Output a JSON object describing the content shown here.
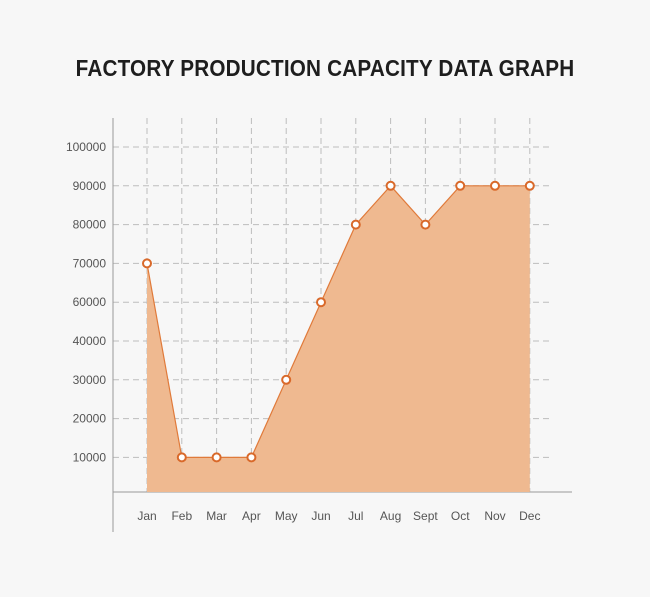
{
  "chart_data": {
    "type": "area",
    "title": "FACTORY PRODUCTION CAPACITY DATA GRAPH",
    "xlabel": "",
    "ylabel": "",
    "categories": [
      "Jan",
      "Feb",
      "Mar",
      "Apr",
      "May",
      "Jun",
      "Jul",
      "Aug",
      "Sept",
      "Oct",
      "Nov",
      "Dec"
    ],
    "series": [
      {
        "values": [
          70000,
          10000,
          10000,
          10000,
          30000,
          60000,
          80000,
          90000,
          80000,
          90000,
          90000,
          90000
        ]
      }
    ],
    "y_tick_labels": [
      "10000",
      "20000",
      "30000",
      "40000",
      "60000",
      "70000",
      "80000",
      "90000",
      "100000"
    ],
    "grid": true,
    "legend": "none",
    "colors": {
      "fill": "#efb990",
      "line": "#e07a3a",
      "marker_stroke": "#d9692a",
      "marker_fill": "#ffffff",
      "grid": "#bdbdbd",
      "axis": "#9a9a9a"
    }
  }
}
